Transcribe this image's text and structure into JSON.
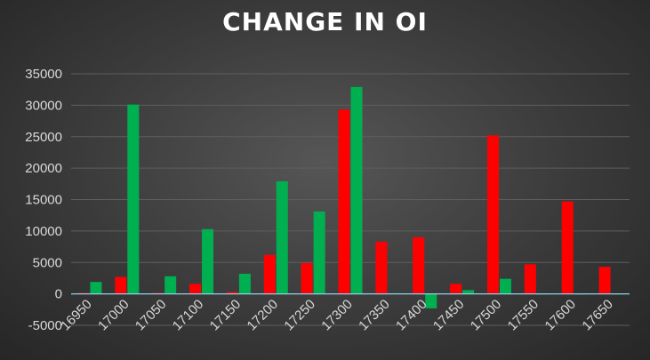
{
  "chart_data": {
    "type": "bar",
    "title": "CHANGE IN OI",
    "xlabel": "",
    "ylabel": "",
    "ylim": [
      -5000,
      35000
    ],
    "yticks": [
      -5000,
      0,
      5000,
      10000,
      15000,
      20000,
      25000,
      30000,
      35000
    ],
    "grid": true,
    "legend": "none",
    "categories": [
      "16950",
      "17000",
      "17050",
      "17100",
      "17150",
      "17200",
      "17250",
      "17300",
      "17350",
      "17400",
      "17450",
      "17500",
      "17550",
      "17600",
      "17650"
    ],
    "series": [
      {
        "color": "#ff0000",
        "values": [
          150,
          2700,
          150,
          1600,
          300,
          6200,
          4900,
          29300,
          8300,
          9000,
          1600,
          25200,
          4700,
          14700,
          4300
        ]
      },
      {
        "color": "#00b050",
        "values": [
          1900,
          30100,
          2800,
          10300,
          3200,
          17900,
          13100,
          32900,
          100,
          -2300,
          600,
          2400,
          0,
          0,
          0
        ]
      }
    ]
  }
}
